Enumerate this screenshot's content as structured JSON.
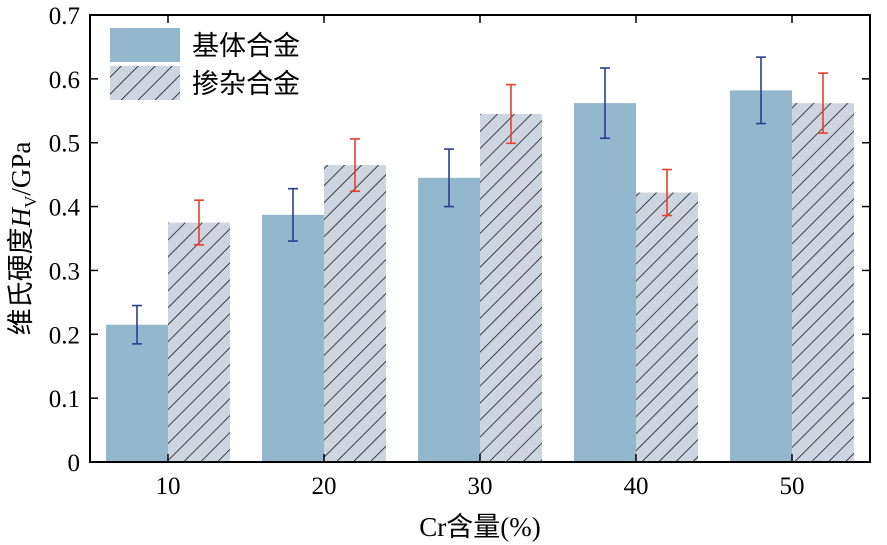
{
  "chart_data": {
    "type": "bar",
    "categories": [
      "10",
      "20",
      "30",
      "40",
      "50"
    ],
    "xlabel": "Cr含量(%)",
    "ylabel_main": "维氏硬度",
    "ylabel_symbol": "H",
    "ylabel_subscript": "V",
    "ylabel_unit": "/GPa",
    "ylim": [
      0,
      0.7
    ],
    "yticks": [
      "0",
      "0.1",
      "0.2",
      "0.3",
      "0.4",
      "0.5",
      "0.6",
      "0.7"
    ],
    "grid": false,
    "legend_position": "top-left",
    "series": [
      {
        "name": "基体合金",
        "values": [
          0.215,
          0.387,
          0.445,
          0.562,
          0.582
        ],
        "errors": [
          0.03,
          0.041,
          0.045,
          0.055,
          0.052
        ],
        "fill": "#93b7cc",
        "pattern": "solid",
        "error_color": "#2b3d8f"
      },
      {
        "name": "掺杂合金",
        "values": [
          0.375,
          0.465,
          0.545,
          0.422,
          0.562
        ],
        "errors": [
          0.035,
          0.041,
          0.046,
          0.036,
          0.047
        ],
        "fill": "#cdd5e0",
        "pattern": "hatch",
        "error_color": "#e8402e"
      }
    ]
  }
}
